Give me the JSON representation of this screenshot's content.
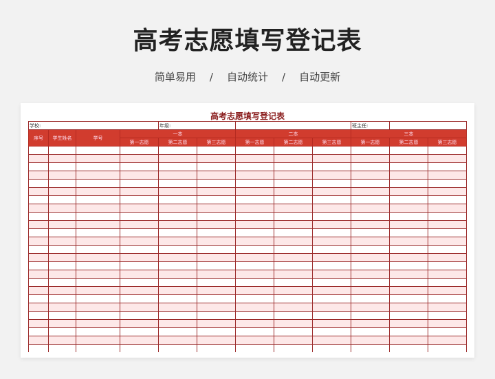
{
  "page_title": "高考志愿填写登记表",
  "tags": [
    "简单易用",
    "自动统计",
    "自动更新"
  ],
  "separator": "/",
  "sheet": {
    "title": "高考志愿填写登记表",
    "school_label": "学校:",
    "grade_label": "年级:",
    "teacher_label": "班主任:",
    "headers": {
      "index": "序号",
      "name": "学生姓名",
      "id": "学号",
      "groups": [
        "一本",
        "二本",
        "三本"
      ],
      "choices": [
        "第一志愿",
        "第二志愿",
        "第三志愿"
      ]
    },
    "row_count": 25
  },
  "colors": {
    "header": "#d13c2e",
    "border": "#9b2a2a",
    "stripe": "#fde8e8"
  }
}
